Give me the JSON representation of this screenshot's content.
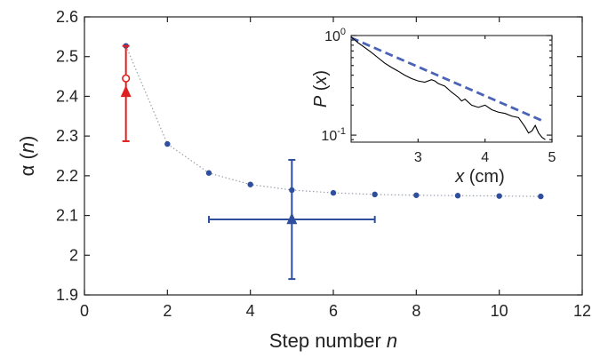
{
  "colors": {
    "series": "#2f4f9e",
    "highlight": "#e02020",
    "fit": "#4a63b8",
    "connector": "#9aa0a8",
    "ink": "#000000"
  },
  "chart_data": [
    {
      "type": "scatter",
      "id": "main",
      "xlabel_text": "Step number ",
      "xlabel_var": "n",
      "ylabel_text": "α (",
      "ylabel_var": "n",
      "ylabel_close": ")",
      "xlim": [
        0,
        12
      ],
      "ylim": [
        1.9,
        2.6
      ],
      "xticks": [
        0,
        2,
        4,
        6,
        8,
        10,
        12
      ],
      "xtick_labels": [
        "0",
        "2",
        "4",
        "6",
        "8",
        "10",
        "12"
      ],
      "yticks": [
        1.9,
        2.0,
        2.1,
        2.2,
        2.3,
        2.4,
        2.5,
        2.6
      ],
      "ytick_labels": [
        "1.9",
        "2",
        "2.1",
        "2.2",
        "2.3",
        "2.4",
        "2.5",
        "2.6"
      ],
      "grid": false,
      "series": [
        {
          "x": [
            1,
            2,
            3,
            4,
            5,
            6,
            7,
            8,
            9,
            10,
            11
          ],
          "y": [
            2.527,
            2.28,
            2.207,
            2.178,
            2.164,
            2.157,
            2.153,
            2.151,
            2.15,
            2.149,
            2.148
          ],
          "marker": "dot",
          "connector": "dotted"
        }
      ],
      "errorbar_points": [
        {
          "x": 1,
          "y": 2.41,
          "yerr_low": 2.287,
          "yerr_high": 2.527,
          "marker": "triangle",
          "color": "highlight"
        },
        {
          "x": 1,
          "y": 2.445,
          "marker": "open-circle",
          "color": "highlight"
        },
        {
          "x": 5,
          "y": 2.09,
          "xerr_low": 3.0,
          "xerr_high": 7.0,
          "yerr_low": 1.94,
          "yerr_high": 2.24,
          "marker": "triangle",
          "color": "series"
        }
      ]
    },
    {
      "type": "line",
      "id": "inset",
      "xlabel_var": "x",
      "xlabel_text": " (cm)",
      "ylabel_var": "P",
      "ylabel_open": " (",
      "ylabel_x": "x",
      "ylabel_close": ")",
      "xlim": [
        2.0,
        5.0
      ],
      "ylim": [
        0.085,
        1.0
      ],
      "yscale": "log",
      "xticks": [
        3,
        4,
        5
      ],
      "xtick_labels": [
        "3",
        "4",
        "5"
      ],
      "yticks": [
        0.1,
        1.0
      ],
      "ytick_labels": [
        {
          "base": "10",
          "exp": "-1"
        },
        {
          "base": "10",
          "exp": "0"
        }
      ],
      "grid": false,
      "fit_line": {
        "x": [
          2.0,
          4.85
        ],
        "y": [
          0.95,
          0.14
        ],
        "style": "dashed"
      },
      "empirical": {
        "x": [
          2.0,
          2.1,
          2.2,
          2.3,
          2.4,
          2.5,
          2.6,
          2.7,
          2.8,
          2.9,
          3.0,
          3.1,
          3.2,
          3.25,
          3.3,
          3.35,
          3.4,
          3.5,
          3.6,
          3.65,
          3.7,
          3.8,
          3.9,
          4.0,
          4.1,
          4.2,
          4.3,
          4.4,
          4.5,
          4.6,
          4.65,
          4.7,
          4.75,
          4.8,
          4.85,
          4.9
        ],
        "y": [
          0.97,
          0.85,
          0.76,
          0.68,
          0.6,
          0.53,
          0.48,
          0.44,
          0.4,
          0.37,
          0.35,
          0.34,
          0.36,
          0.35,
          0.33,
          0.32,
          0.31,
          0.27,
          0.24,
          0.22,
          0.23,
          0.2,
          0.19,
          0.2,
          0.18,
          0.17,
          0.165,
          0.155,
          0.15,
          0.12,
          0.105,
          0.11,
          0.125,
          0.105,
          0.095,
          0.09
        ]
      }
    }
  ]
}
